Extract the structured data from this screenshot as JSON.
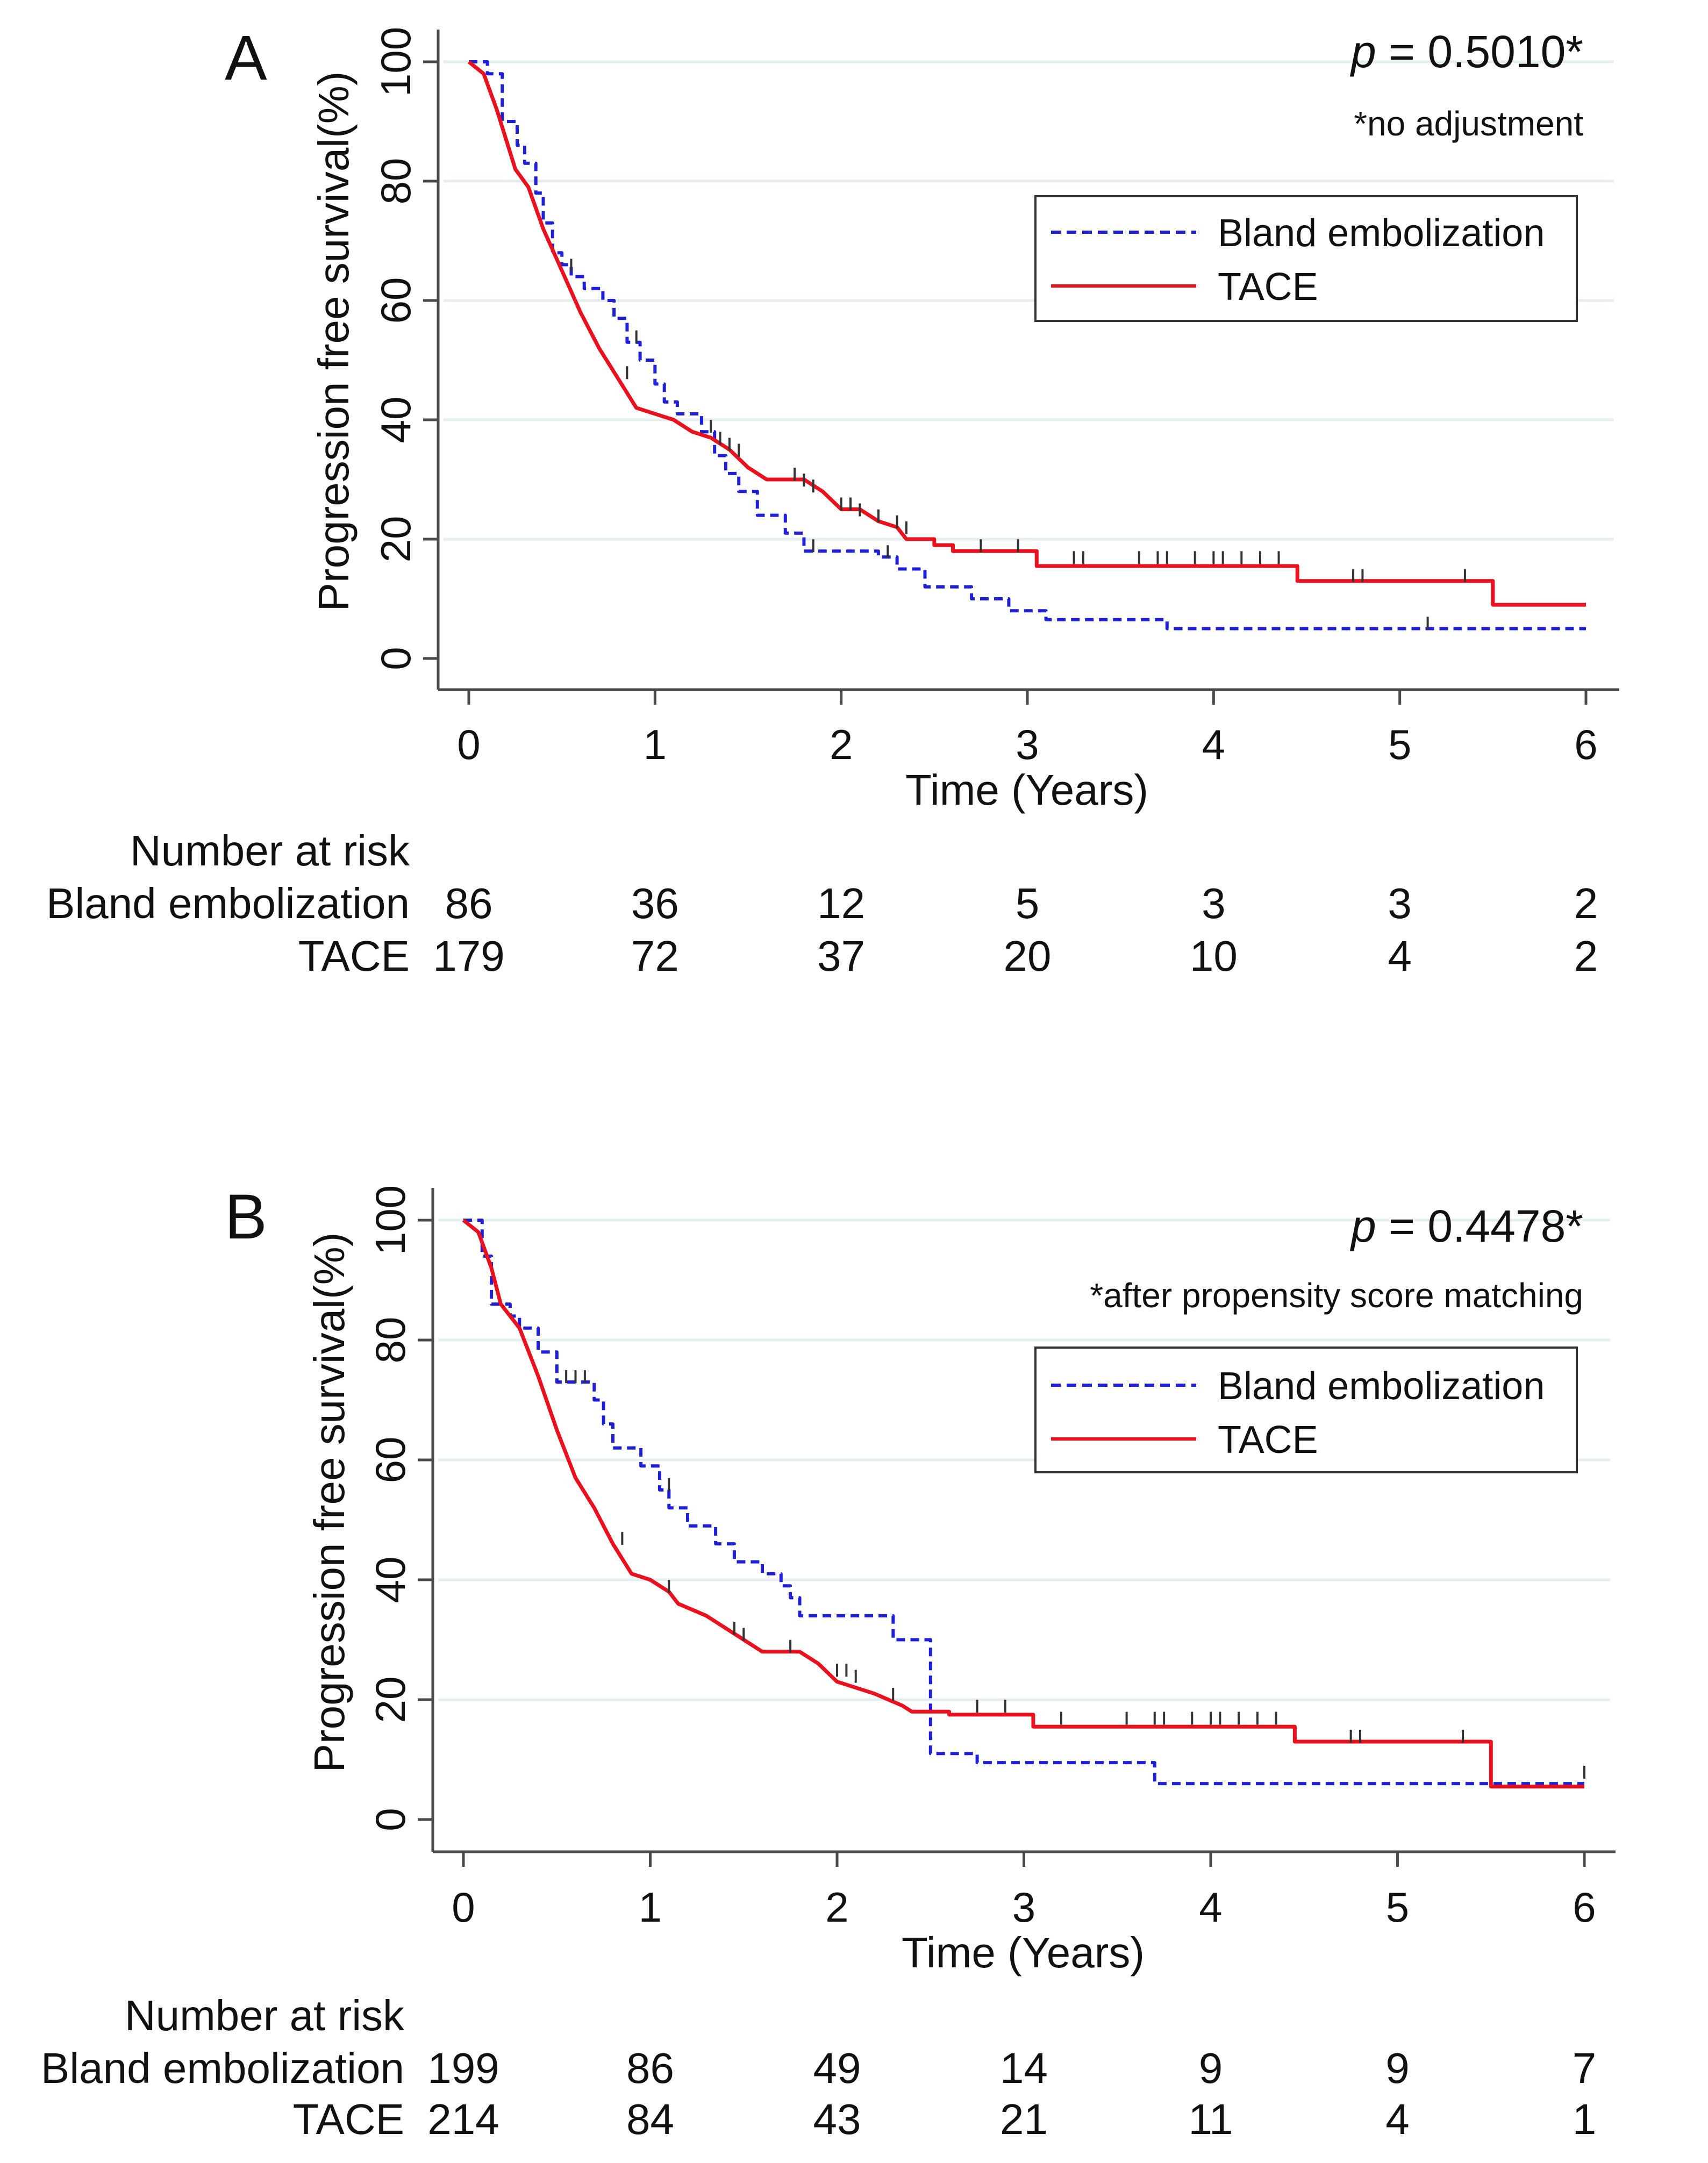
{
  "colors": {
    "bland": "#1f1fd8",
    "tace": "#e8111d",
    "axis": "#4a4a4a",
    "grid": "#e4eeef",
    "text": "#111111"
  },
  "chart_data": [
    {
      "type": "line",
      "panel_label": "A",
      "p_label": "p",
      "p_value": " = 0.5010*",
      "note": "*no adjustment",
      "ylabel": "Progression free survival(%)",
      "xlabel": "Time (Years)",
      "xlim": [
        0,
        6
      ],
      "ylim": [
        0,
        100
      ],
      "xticks": [
        0,
        1,
        2,
        3,
        4,
        5,
        6
      ],
      "yticks": [
        0,
        20,
        40,
        60,
        80,
        100
      ],
      "legend": [
        "Bland embolization",
        "TACE"
      ],
      "risk_title": "Number at risk",
      "risk_rows": [
        {
          "label": "Bland embolization",
          "values": [
            "86",
            "36",
            "12",
            "5",
            "3",
            "3",
            "2"
          ]
        },
        {
          "label": "TACE",
          "values": [
            "179",
            "72",
            "37",
            "20",
            "10",
            "4",
            "2"
          ]
        }
      ],
      "series": [
        {
          "name": "Bland embolization",
          "points": [
            [
              0,
              100
            ],
            [
              0.1,
              100
            ],
            [
              0.1,
              98
            ],
            [
              0.18,
              98
            ],
            [
              0.18,
              90
            ],
            [
              0.26,
              90
            ],
            [
              0.26,
              86
            ],
            [
              0.3,
              86
            ],
            [
              0.3,
              83
            ],
            [
              0.36,
              83
            ],
            [
              0.36,
              78
            ],
            [
              0.4,
              78
            ],
            [
              0.4,
              73
            ],
            [
              0.45,
              73
            ],
            [
              0.45,
              68
            ],
            [
              0.5,
              68
            ],
            [
              0.5,
              66
            ],
            [
              0.55,
              66
            ],
            [
              0.55,
              64
            ],
            [
              0.62,
              64
            ],
            [
              0.62,
              62
            ],
            [
              0.72,
              62
            ],
            [
              0.72,
              60
            ],
            [
              0.78,
              60
            ],
            [
              0.78,
              57
            ],
            [
              0.85,
              57
            ],
            [
              0.85,
              53
            ],
            [
              0.92,
              53
            ],
            [
              0.92,
              50
            ],
            [
              1.0,
              50
            ],
            [
              1.0,
              46
            ],
            [
              1.05,
              46
            ],
            [
              1.05,
              43
            ],
            [
              1.12,
              43
            ],
            [
              1.12,
              41
            ],
            [
              1.25,
              41
            ],
            [
              1.25,
              38
            ],
            [
              1.32,
              38
            ],
            [
              1.32,
              34
            ],
            [
              1.38,
              34
            ],
            [
              1.38,
              31
            ],
            [
              1.45,
              31
            ],
            [
              1.45,
              28
            ],
            [
              1.55,
              28
            ],
            [
              1.55,
              24
            ],
            [
              1.7,
              24
            ],
            [
              1.7,
              21
            ],
            [
              1.8,
              21
            ],
            [
              1.8,
              18
            ],
            [
              2.2,
              18
            ],
            [
              2.2,
              17
            ],
            [
              2.3,
              17
            ],
            [
              2.3,
              15
            ],
            [
              2.45,
              15
            ],
            [
              2.45,
              12
            ],
            [
              2.7,
              12
            ],
            [
              2.7,
              10
            ],
            [
              2.9,
              10
            ],
            [
              2.9,
              8
            ],
            [
              3.1,
              8
            ],
            [
              3.1,
              6.5
            ],
            [
              3.75,
              6.5
            ],
            [
              3.75,
              5
            ],
            [
              6,
              5
            ]
          ],
          "censor": [
            [
              0.9,
              53
            ],
            [
              1.3,
              38
            ],
            [
              1.85,
              18
            ],
            [
              2.25,
              17
            ],
            [
              5.15,
              5
            ]
          ]
        },
        {
          "name": "TACE",
          "points": [
            [
              0,
              100
            ],
            [
              0.08,
              98
            ],
            [
              0.15,
              92
            ],
            [
              0.2,
              87
            ],
            [
              0.25,
              82
            ],
            [
              0.32,
              79
            ],
            [
              0.4,
              72
            ],
            [
              0.5,
              65
            ],
            [
              0.6,
              58
            ],
            [
              0.7,
              52
            ],
            [
              0.8,
              47
            ],
            [
              0.9,
              42
            ],
            [
              1.0,
              41
            ],
            [
              1.1,
              40
            ],
            [
              1.2,
              38
            ],
            [
              1.3,
              37
            ],
            [
              1.4,
              35
            ],
            [
              1.5,
              32
            ],
            [
              1.6,
              30
            ],
            [
              1.8,
              30
            ],
            [
              1.9,
              28
            ],
            [
              2.0,
              25
            ],
            [
              2.1,
              25
            ],
            [
              2.2,
              23
            ],
            [
              2.3,
              22
            ],
            [
              2.35,
              20
            ],
            [
              2.5,
              20
            ],
            [
              2.5,
              19
            ],
            [
              2.6,
              19
            ],
            [
              2.6,
              18
            ],
            [
              3.05,
              18
            ],
            [
              3.05,
              15.5
            ],
            [
              4.45,
              15.5
            ],
            [
              4.45,
              13
            ],
            [
              5.5,
              13
            ],
            [
              5.5,
              9
            ],
            [
              6,
              9
            ]
          ],
          "censor": [
            [
              0.55,
              65
            ],
            [
              0.85,
              47
            ],
            [
              1.35,
              36
            ],
            [
              1.4,
              35
            ],
            [
              1.45,
              34
            ],
            [
              1.75,
              30
            ],
            [
              1.8,
              29
            ],
            [
              1.85,
              28
            ],
            [
              2.0,
              25
            ],
            [
              2.05,
              25
            ],
            [
              2.1,
              24
            ],
            [
              2.2,
              23
            ],
            [
              2.3,
              22
            ],
            [
              2.35,
              21
            ],
            [
              2.75,
              18
            ],
            [
              2.95,
              18
            ],
            [
              3.25,
              16
            ],
            [
              3.3,
              16
            ],
            [
              3.6,
              16
            ],
            [
              3.7,
              16
            ],
            [
              3.75,
              16
            ],
            [
              3.9,
              16
            ],
            [
              4.0,
              16
            ],
            [
              4.05,
              16
            ],
            [
              4.15,
              16
            ],
            [
              4.25,
              16
            ],
            [
              4.35,
              16
            ],
            [
              4.75,
              13
            ],
            [
              4.8,
              13
            ],
            [
              5.35,
              13
            ]
          ]
        }
      ]
    },
    {
      "type": "line",
      "panel_label": "B",
      "p_label": "p",
      "p_value": " = 0.4478*",
      "note": "*after propensity score matching",
      "ylabel": "Progression free survival(%)",
      "xlabel": "Time (Years)",
      "xlim": [
        0,
        6
      ],
      "ylim": [
        0,
        100
      ],
      "xticks": [
        0,
        1,
        2,
        3,
        4,
        5,
        6
      ],
      "yticks": [
        0,
        20,
        40,
        60,
        80,
        100
      ],
      "legend": [
        "Bland embolization",
        "TACE"
      ],
      "risk_title": "Number at risk",
      "risk_rows": [
        {
          "label": "Bland embolization",
          "values": [
            "199",
            "86",
            "49",
            "14",
            "9",
            "9",
            "7"
          ]
        },
        {
          "label": "TACE",
          "values": [
            "214",
            "84",
            "43",
            "21",
            "11",
            "4",
            "1"
          ]
        }
      ],
      "series": [
        {
          "name": "Bland embolization",
          "points": [
            [
              0,
              100
            ],
            [
              0.1,
              100
            ],
            [
              0.1,
              94
            ],
            [
              0.15,
              94
            ],
            [
              0.15,
              86
            ],
            [
              0.25,
              86
            ],
            [
              0.25,
              84
            ],
            [
              0.3,
              84
            ],
            [
              0.3,
              82
            ],
            [
              0.4,
              82
            ],
            [
              0.4,
              78
            ],
            [
              0.5,
              78
            ],
            [
              0.5,
              73
            ],
            [
              0.7,
              73
            ],
            [
              0.7,
              70
            ],
            [
              0.75,
              70
            ],
            [
              0.75,
              66
            ],
            [
              0.8,
              66
            ],
            [
              0.8,
              62
            ],
            [
              0.95,
              62
            ],
            [
              0.95,
              59
            ],
            [
              1.05,
              59
            ],
            [
              1.05,
              55
            ],
            [
              1.1,
              55
            ],
            [
              1.1,
              52
            ],
            [
              1.2,
              52
            ],
            [
              1.2,
              49
            ],
            [
              1.35,
              49
            ],
            [
              1.35,
              46
            ],
            [
              1.45,
              46
            ],
            [
              1.45,
              43
            ],
            [
              1.6,
              43
            ],
            [
              1.6,
              41
            ],
            [
              1.7,
              41
            ],
            [
              1.7,
              39
            ],
            [
              1.75,
              39
            ],
            [
              1.75,
              37
            ],
            [
              1.8,
              37
            ],
            [
              1.8,
              34
            ],
            [
              2.3,
              34
            ],
            [
              2.3,
              30
            ],
            [
              2.5,
              30
            ],
            [
              2.5,
              11
            ],
            [
              2.75,
              11
            ],
            [
              2.75,
              9.5
            ],
            [
              3.7,
              9.5
            ],
            [
              3.7,
              6
            ],
            [
              6,
              6
            ]
          ],
          "censor": [
            [
              0.55,
              73
            ],
            [
              0.6,
              73
            ],
            [
              0.65,
              73
            ],
            [
              1.1,
              55
            ],
            [
              6.0,
              7
            ]
          ]
        },
        {
          "name": "TACE",
          "points": [
            [
              0,
              100
            ],
            [
              0.08,
              98
            ],
            [
              0.15,
              92
            ],
            [
              0.2,
              86
            ],
            [
              0.3,
              82
            ],
            [
              0.4,
              74
            ],
            [
              0.5,
              65
            ],
            [
              0.6,
              57
            ],
            [
              0.7,
              52
            ],
            [
              0.8,
              46
            ],
            [
              0.9,
              41
            ],
            [
              1.0,
              40
            ],
            [
              1.1,
              38
            ],
            [
              1.15,
              36
            ],
            [
              1.3,
              34
            ],
            [
              1.4,
              32
            ],
            [
              1.5,
              30
            ],
            [
              1.6,
              28
            ],
            [
              1.8,
              28
            ],
            [
              1.9,
              26
            ],
            [
              2.0,
              23
            ],
            [
              2.1,
              22
            ],
            [
              2.2,
              21
            ],
            [
              2.35,
              19
            ],
            [
              2.4,
              18
            ],
            [
              2.6,
              18
            ],
            [
              2.6,
              17.5
            ],
            [
              3.05,
              17.5
            ],
            [
              3.05,
              15.5
            ],
            [
              4.45,
              15.5
            ],
            [
              4.45,
              13
            ],
            [
              5.5,
              13
            ],
            [
              5.5,
              5.5
            ],
            [
              6,
              5.5
            ]
          ],
          "censor": [
            [
              0.85,
              46
            ],
            [
              1.1,
              38
            ],
            [
              1.45,
              31
            ],
            [
              1.5,
              30
            ],
            [
              1.75,
              28
            ],
            [
              2.0,
              24
            ],
            [
              2.05,
              24
            ],
            [
              2.1,
              23
            ],
            [
              2.3,
              20
            ],
            [
              2.75,
              18
            ],
            [
              2.9,
              18
            ],
            [
              3.2,
              16
            ],
            [
              3.55,
              16
            ],
            [
              3.7,
              16
            ],
            [
              3.75,
              16
            ],
            [
              3.9,
              16
            ],
            [
              4.0,
              16
            ],
            [
              4.05,
              16
            ],
            [
              4.15,
              16
            ],
            [
              4.25,
              16
            ],
            [
              4.35,
              16
            ],
            [
              4.75,
              13
            ],
            [
              4.8,
              13
            ],
            [
              5.35,
              13
            ]
          ]
        }
      ]
    }
  ]
}
